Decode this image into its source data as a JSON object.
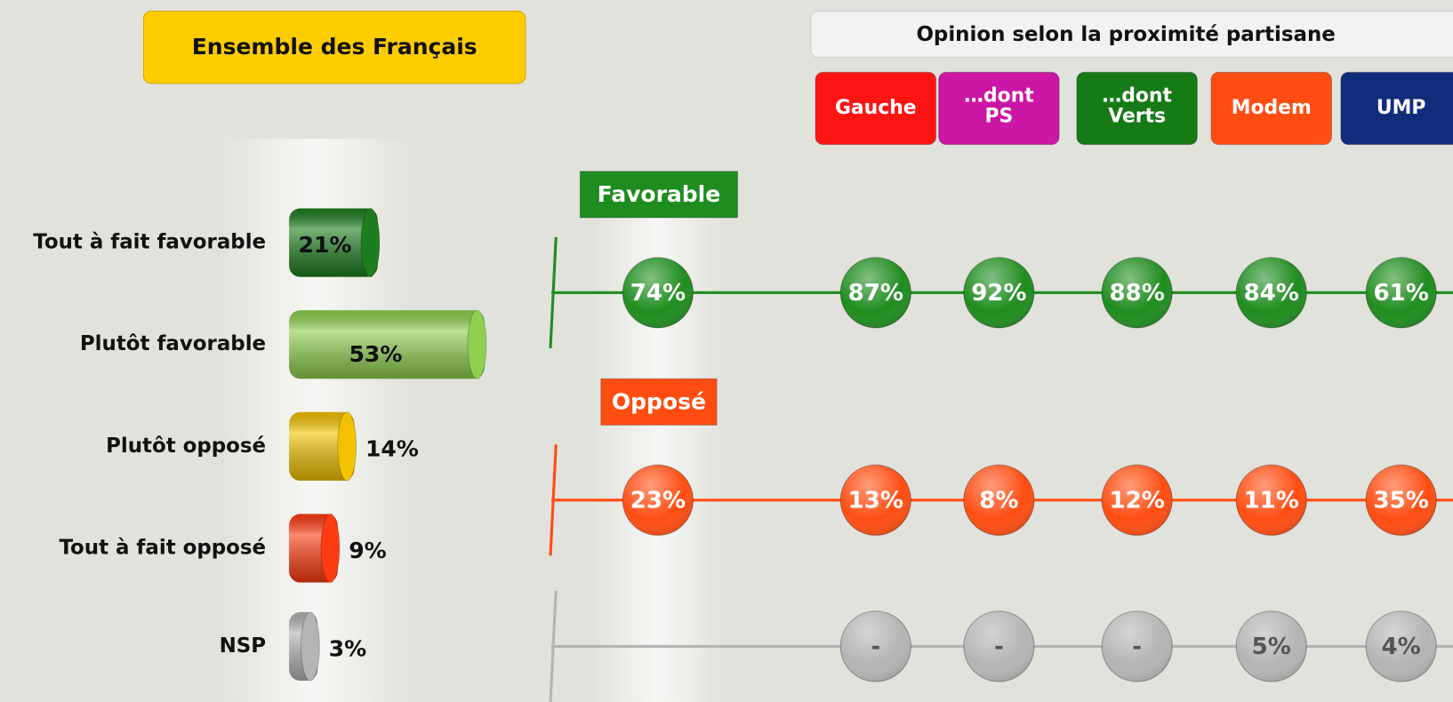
{
  "chart_data": [
    {
      "type": "bar",
      "orientation": "horizontal",
      "title": "Ensemble des Français",
      "categories": [
        "Tout à fait favorable",
        "Plutôt favorable",
        "Plutôt opposé",
        "Tout à fait opposé",
        "NSP"
      ],
      "values": [
        21,
        53,
        14,
        9,
        3
      ],
      "value_labels": [
        "21%",
        "53%",
        "14%",
        "9%",
        "3%"
      ],
      "colors": [
        "#1e7d1e",
        "#8fd14f",
        "#f2c200",
        "#ff3b12",
        "#b4b4b4"
      ]
    },
    {
      "type": "dot-table",
      "title": "Opinion selon la proximité partisane",
      "categories": [
        null,
        "Gauche",
        "…dont PS",
        "…dont Verts",
        "Modem",
        "UMP"
      ],
      "category_colors": [
        null,
        "#ff1414",
        "#cc16a6",
        "#167a16",
        "#ff4d12",
        "#122c7c"
      ],
      "series": [
        {
          "name": "Favorable",
          "color": "#1f8c1f",
          "values": [
            74,
            87,
            92,
            88,
            84,
            61
          ],
          "value_labels": [
            "74%",
            "87%",
            "92%",
            "88%",
            "84%",
            "61%"
          ]
        },
        {
          "name": "Opposé",
          "color": "#ff4d12",
          "values": [
            23,
            13,
            8,
            12,
            11,
            35
          ],
          "value_labels": [
            "23%",
            "13%",
            "8%",
            "12%",
            "11%",
            "35%"
          ]
        },
        {
          "color": "#b4b4b4",
          "values": [
            null,
            null,
            null,
            null,
            5,
            4
          ],
          "value_labels": [
            null,
            "-",
            "-",
            "-",
            "5%",
            "4%"
          ]
        }
      ]
    }
  ]
}
